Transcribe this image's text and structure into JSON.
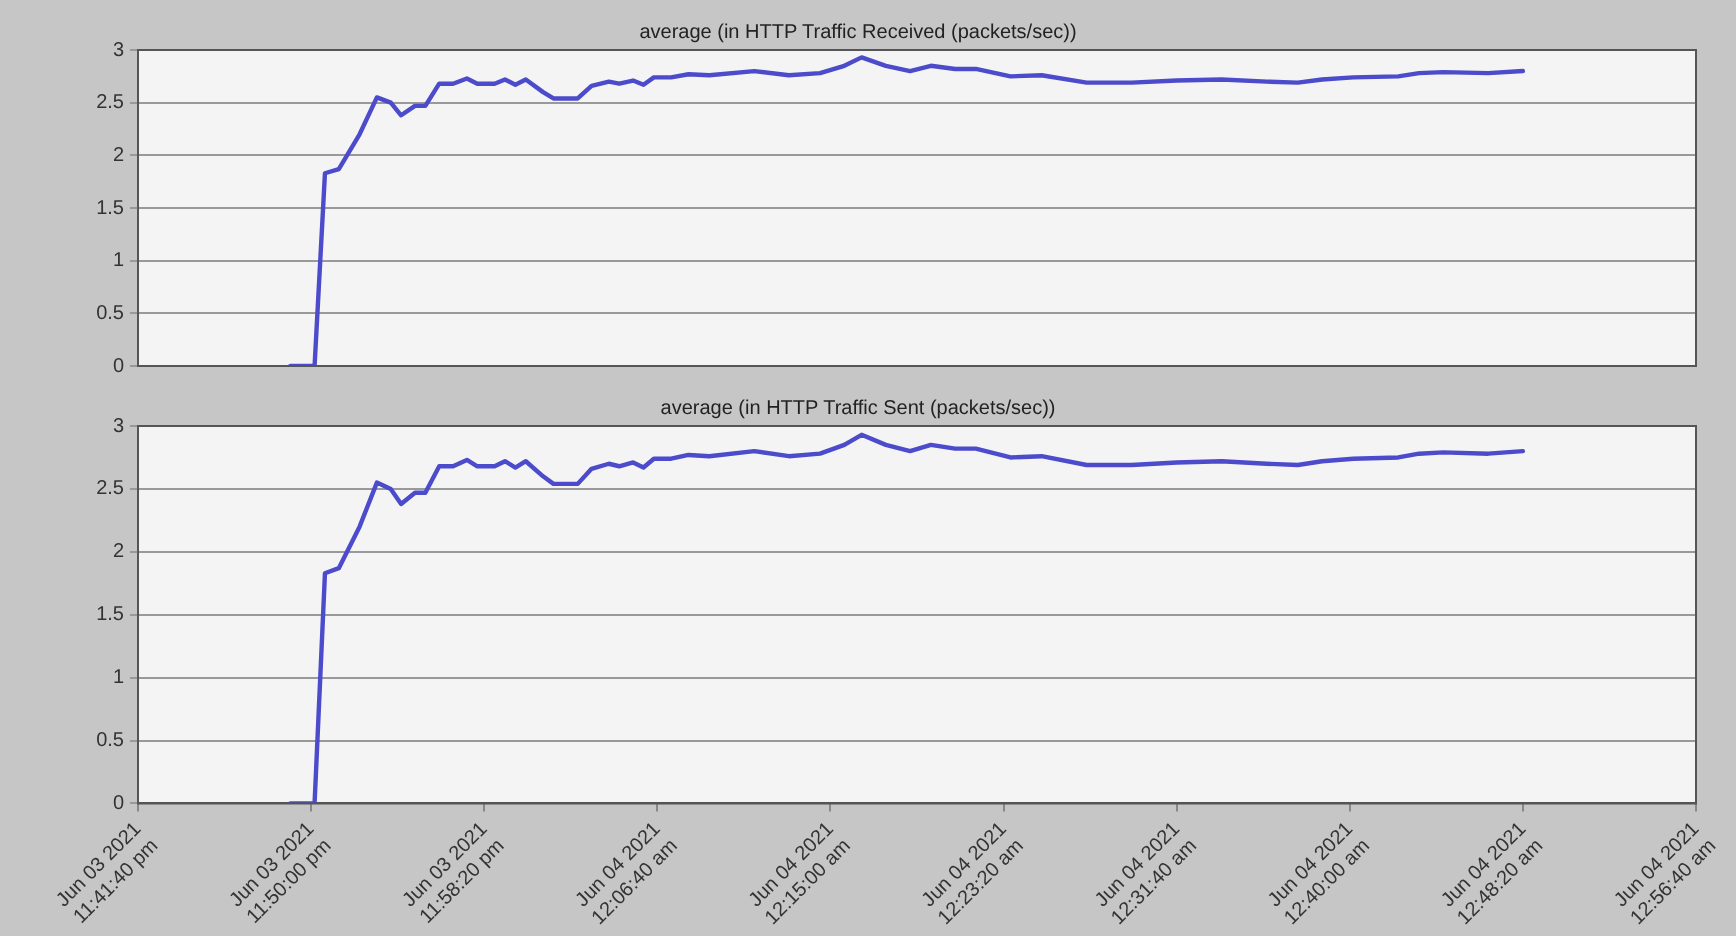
{
  "chart_data": [
    {
      "type": "line",
      "title": "average (in HTTP Traffic Received (packets/sec))",
      "x": [
        "2021-06-03T23:49:00",
        "2021-06-03T23:50:10",
        "2021-06-03T23:50:40",
        "2021-06-03T23:51:20",
        "2021-06-03T23:52:20",
        "2021-06-03T23:53:10",
        "2021-06-03T23:53:50",
        "2021-06-03T23:54:20",
        "2021-06-03T23:55:00",
        "2021-06-03T23:55:30",
        "2021-06-03T23:56:10",
        "2021-06-03T23:56:50",
        "2021-06-03T23:57:30",
        "2021-06-03T23:58:00",
        "2021-06-03T23:58:50",
        "2021-06-03T23:59:20",
        "2021-06-03T23:59:50",
        "2021-06-04T00:00:20",
        "2021-06-04T00:01:10",
        "2021-06-04T00:01:40",
        "2021-06-04T00:02:50",
        "2021-06-04T00:03:30",
        "2021-06-04T00:04:20",
        "2021-06-04T00:04:50",
        "2021-06-04T00:05:30",
        "2021-06-04T00:06:00",
        "2021-06-04T00:06:30",
        "2021-06-04T00:07:20",
        "2021-06-04T00:08:10",
        "2021-06-04T00:09:10",
        "2021-06-04T00:11:20",
        "2021-06-04T00:13:00",
        "2021-06-04T00:14:30",
        "2021-06-04T00:15:40",
        "2021-06-04T00:16:30",
        "2021-06-04T00:17:40",
        "2021-06-04T00:18:50",
        "2021-06-04T00:19:50",
        "2021-06-04T00:21:00",
        "2021-06-04T00:22:00",
        "2021-06-04T00:23:40",
        "2021-06-04T00:25:10",
        "2021-06-04T00:27:20",
        "2021-06-04T00:29:30",
        "2021-06-04T00:31:40",
        "2021-06-04T00:33:50",
        "2021-06-04T00:36:00",
        "2021-06-04T00:37:30",
        "2021-06-04T00:38:40",
        "2021-06-04T00:40:10",
        "2021-06-04T00:42:20",
        "2021-06-04T00:43:20",
        "2021-06-04T00:44:30",
        "2021-06-04T00:46:40",
        "2021-06-04T00:48:20"
      ],
      "series": [
        {
          "color": "#4b4bcc",
          "values": [
            0,
            0,
            1.83,
            1.87,
            2.2,
            2.55,
            2.5,
            2.38,
            2.47,
            2.47,
            2.68,
            2.68,
            2.73,
            2.68,
            2.68,
            2.72,
            2.67,
            2.72,
            2.6,
            2.54,
            2.54,
            2.66,
            2.7,
            2.68,
            2.71,
            2.67,
            2.74,
            2.74,
            2.77,
            2.76,
            2.8,
            2.76,
            2.78,
            2.85,
            2.93,
            2.85,
            2.8,
            2.85,
            2.82,
            2.82,
            2.75,
            2.76,
            2.69,
            2.69,
            2.71,
            2.72,
            2.7,
            2.69,
            2.72,
            2.74,
            2.75,
            2.78,
            2.79,
            2.78,
            2.8
          ]
        }
      ],
      "xlim": [
        "2021-06-03T23:41:40",
        "2021-06-04T00:56:40"
      ],
      "ylim": [
        0,
        3
      ],
      "yticks": [
        0,
        0.5,
        1,
        1.5,
        2,
        2.5,
        3
      ],
      "grid": "y",
      "legend": false,
      "tick_labels": "y",
      "marker": "none",
      "line_style": "solid"
    },
    {
      "type": "line",
      "title": "average (in HTTP Traffic Sent (packets/sec))",
      "x": [
        "2021-06-03T23:49:00",
        "2021-06-03T23:50:10",
        "2021-06-03T23:50:40",
        "2021-06-03T23:51:20",
        "2021-06-03T23:52:20",
        "2021-06-03T23:53:10",
        "2021-06-03T23:53:50",
        "2021-06-03T23:54:20",
        "2021-06-03T23:55:00",
        "2021-06-03T23:55:30",
        "2021-06-03T23:56:10",
        "2021-06-03T23:56:50",
        "2021-06-03T23:57:30",
        "2021-06-03T23:58:00",
        "2021-06-03T23:58:50",
        "2021-06-03T23:59:20",
        "2021-06-03T23:59:50",
        "2021-06-04T00:00:20",
        "2021-06-04T00:01:10",
        "2021-06-04T00:01:40",
        "2021-06-04T00:02:50",
        "2021-06-04T00:03:30",
        "2021-06-04T00:04:20",
        "2021-06-04T00:04:50",
        "2021-06-04T00:05:30",
        "2021-06-04T00:06:00",
        "2021-06-04T00:06:30",
        "2021-06-04T00:07:20",
        "2021-06-04T00:08:10",
        "2021-06-04T00:09:10",
        "2021-06-04T00:11:20",
        "2021-06-04T00:13:00",
        "2021-06-04T00:14:30",
        "2021-06-04T00:15:40",
        "2021-06-04T00:16:30",
        "2021-06-04T00:17:40",
        "2021-06-04T00:18:50",
        "2021-06-04T00:19:50",
        "2021-06-04T00:21:00",
        "2021-06-04T00:22:00",
        "2021-06-04T00:23:40",
        "2021-06-04T00:25:10",
        "2021-06-04T00:27:20",
        "2021-06-04T00:29:30",
        "2021-06-04T00:31:40",
        "2021-06-04T00:33:50",
        "2021-06-04T00:36:00",
        "2021-06-04T00:37:30",
        "2021-06-04T00:38:40",
        "2021-06-04T00:40:10",
        "2021-06-04T00:42:20",
        "2021-06-04T00:43:20",
        "2021-06-04T00:44:30",
        "2021-06-04T00:46:40",
        "2021-06-04T00:48:20"
      ],
      "series": [
        {
          "color": "#4b4bcc",
          "values": [
            0,
            0,
            1.83,
            1.87,
            2.2,
            2.55,
            2.5,
            2.38,
            2.47,
            2.47,
            2.68,
            2.68,
            2.73,
            2.68,
            2.68,
            2.72,
            2.67,
            2.72,
            2.6,
            2.54,
            2.54,
            2.66,
            2.7,
            2.68,
            2.71,
            2.67,
            2.74,
            2.74,
            2.77,
            2.76,
            2.8,
            2.76,
            2.78,
            2.85,
            2.93,
            2.85,
            2.8,
            2.85,
            2.82,
            2.82,
            2.75,
            2.76,
            2.69,
            2.69,
            2.71,
            2.72,
            2.7,
            2.69,
            2.72,
            2.74,
            2.75,
            2.78,
            2.79,
            2.78,
            2.8
          ]
        }
      ],
      "xlim": [
        "2021-06-03T23:41:40",
        "2021-06-04T00:56:40"
      ],
      "xticks": [
        {
          "value": "2021-06-03T23:41:40",
          "label": "Jun 03 2021\n11:41:40 pm"
        },
        {
          "value": "2021-06-03T23:50:00",
          "label": "Jun 03 2021\n11:50:00 pm"
        },
        {
          "value": "2021-06-03T23:58:20",
          "label": "Jun 03 2021\n11:58:20 pm"
        },
        {
          "value": "2021-06-04T00:06:40",
          "label": "Jun 04 2021\n12:06:40 am"
        },
        {
          "value": "2021-06-04T00:15:00",
          "label": "Jun 04 2021\n12:15:00 am"
        },
        {
          "value": "2021-06-04T00:23:20",
          "label": "Jun 04 2021\n12:23:20 am"
        },
        {
          "value": "2021-06-04T00:31:40",
          "label": "Jun 04 2021\n12:31:40 am"
        },
        {
          "value": "2021-06-04T00:40:00",
          "label": "Jun 04 2021\n12:40:00 am"
        },
        {
          "value": "2021-06-04T00:48:20",
          "label": "Jun 04 2021\n12:48:20 am"
        },
        {
          "value": "2021-06-04T00:56:40",
          "label": "Jun 04 2021\n12:56:40 am"
        }
      ],
      "ylim": [
        0,
        3
      ],
      "yticks": [
        0,
        0.5,
        1,
        1.5,
        2,
        2.5,
        3
      ],
      "grid": "y",
      "legend": false,
      "marker": "none",
      "line_style": "solid"
    }
  ]
}
